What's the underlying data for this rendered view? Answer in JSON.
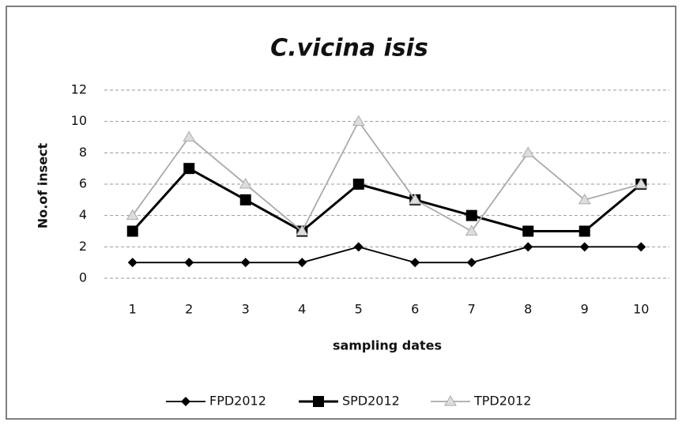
{
  "chart_data": {
    "type": "line",
    "title": "C.vicina isis",
    "x_label": "sampling dates",
    "y_label": "No.of insect",
    "categories": [
      "1",
      "2",
      "3",
      "4",
      "5",
      "6",
      "7",
      "8",
      "9",
      "10"
    ],
    "series": [
      {
        "name": "FPD2012",
        "color": "#000000",
        "marker": "diamond",
        "values": [
          1,
          1,
          1,
          1,
          2,
          1,
          1,
          2,
          2,
          2
        ]
      },
      {
        "name": "SPD2012",
        "color": "#000000",
        "marker": "square",
        "values": [
          3,
          7,
          5,
          3,
          6,
          5,
          4,
          3,
          3,
          6
        ]
      },
      {
        "name": "TPD2012",
        "color": "#aaaaaa",
        "marker": "triangle",
        "values": [
          4,
          9,
          6,
          3,
          10,
          5,
          3,
          8,
          5,
          6
        ]
      }
    ],
    "ylim": [
      0,
      12
    ],
    "yticks": [
      0,
      2,
      4,
      6,
      8,
      10,
      12
    ],
    "grid": true,
    "legend": "bottom"
  }
}
